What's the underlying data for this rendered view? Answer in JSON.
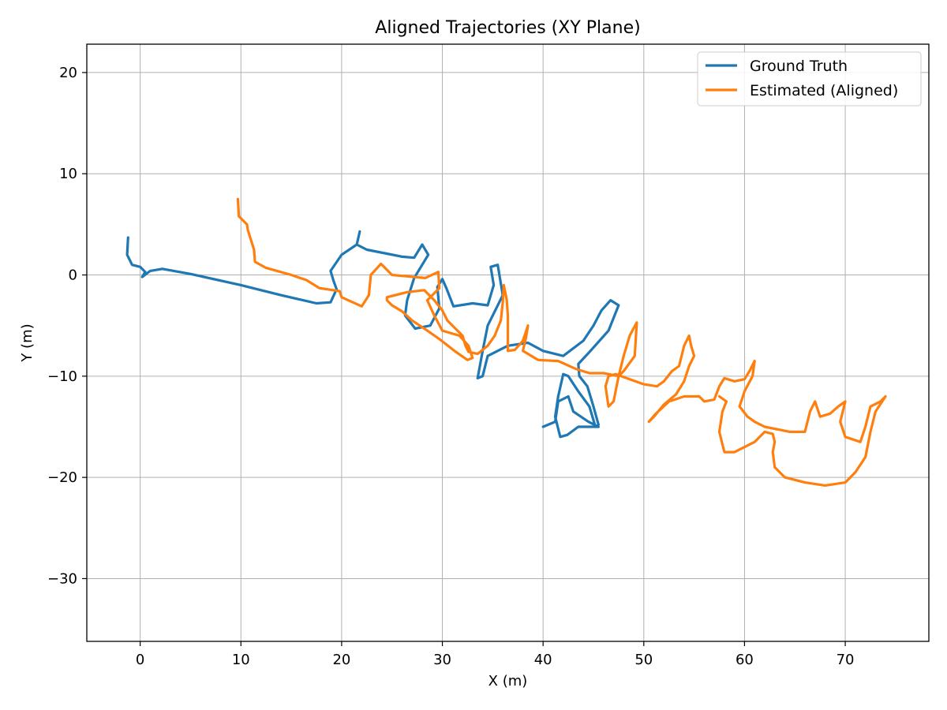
{
  "colors": {
    "ground_truth": "#1f77b4",
    "estimated": "#ff7f0e",
    "grid": "#b0b0b0",
    "axes": "#000000",
    "background": "#ffffff"
  },
  "chart_data": {
    "type": "line",
    "title": "Aligned Trajectories (XY Plane)",
    "xlabel": "X (m)",
    "ylabel": "Y (m)",
    "xlim": [
      -5.3,
      78.3
    ],
    "ylim": [
      -36.2,
      22.8
    ],
    "xticks": [
      0,
      10,
      20,
      30,
      40,
      50,
      60,
      70
    ],
    "yticks": [
      20,
      10,
      0,
      -10,
      -20,
      -30
    ],
    "xtick_labels": [
      "0",
      "10",
      "20",
      "30",
      "40",
      "50",
      "60",
      "70"
    ],
    "ytick_labels": [
      "20",
      "10",
      "0",
      "−10",
      "−20",
      "−30"
    ],
    "grid": true,
    "legend_position": "top-right",
    "series": [
      {
        "name": "Ground Truth",
        "color": "#1f77b4",
        "points": [
          [
            -1.2,
            3.7
          ],
          [
            -1.3,
            2.0
          ],
          [
            -0.8,
            1.0
          ],
          [
            0.0,
            0.8
          ],
          [
            0.5,
            0.3
          ],
          [
            0.2,
            -0.2
          ],
          [
            1.0,
            0.4
          ],
          [
            2.2,
            0.6
          ],
          [
            5.0,
            0.1
          ],
          [
            10.0,
            -1.0
          ],
          [
            14.0,
            -2.0
          ],
          [
            17.5,
            -2.8
          ],
          [
            18.9,
            -2.7
          ],
          [
            19.5,
            -1.4
          ],
          [
            19.2,
            -0.6
          ],
          [
            18.9,
            0.4
          ],
          [
            20.0,
            2.0
          ],
          [
            21.5,
            3.0
          ],
          [
            21.8,
            4.3
          ],
          [
            21.5,
            3.0
          ],
          [
            22.5,
            2.5
          ],
          [
            26.0,
            1.8
          ],
          [
            27.2,
            1.7
          ],
          [
            28.0,
            3.0
          ],
          [
            28.6,
            2.0
          ],
          [
            27.2,
            -0.3
          ],
          [
            26.5,
            -2.5
          ],
          [
            26.3,
            -4.0
          ],
          [
            27.3,
            -5.3
          ],
          [
            28.8,
            -5.0
          ],
          [
            29.7,
            -3.3
          ],
          [
            29.5,
            -1.2
          ],
          [
            30.0,
            -0.4
          ],
          [
            30.4,
            -1.3
          ],
          [
            31.1,
            -3.1
          ],
          [
            33.0,
            -2.8
          ],
          [
            34.5,
            -3.0
          ],
          [
            35.1,
            -1.0
          ],
          [
            34.8,
            0.8
          ],
          [
            35.5,
            1.0
          ],
          [
            36.0,
            -2.0
          ],
          [
            34.5,
            -5.0
          ],
          [
            34.0,
            -7.5
          ],
          [
            33.5,
            -10.2
          ],
          [
            34.0,
            -10.0
          ],
          [
            34.5,
            -8.0
          ],
          [
            36.5,
            -7.0
          ],
          [
            38.5,
            -6.7
          ],
          [
            40.0,
            -7.5
          ],
          [
            42.0,
            -8.0
          ],
          [
            44.0,
            -6.5
          ],
          [
            45.0,
            -5.0
          ],
          [
            45.8,
            -3.5
          ],
          [
            46.7,
            -2.5
          ],
          [
            47.5,
            -3.0
          ],
          [
            46.5,
            -5.5
          ],
          [
            44.7,
            -7.5
          ],
          [
            43.5,
            -8.8
          ],
          [
            43.6,
            -10.0
          ],
          [
            44.4,
            -11.0
          ],
          [
            45.0,
            -13.0
          ],
          [
            45.5,
            -14.8
          ],
          [
            45.2,
            -15.0
          ],
          [
            44.6,
            -13.0
          ],
          [
            43.5,
            -11.5
          ],
          [
            42.5,
            -10.0
          ],
          [
            42.0,
            -9.8
          ],
          [
            41.5,
            -12.0
          ],
          [
            41.2,
            -14.0
          ],
          [
            41.7,
            -16.0
          ],
          [
            42.4,
            -15.8
          ],
          [
            43.5,
            -15.0
          ],
          [
            45.5,
            -15.0
          ],
          [
            44.5,
            -14.5
          ],
          [
            43.0,
            -13.5
          ],
          [
            42.5,
            -12.0
          ],
          [
            41.5,
            -12.5
          ],
          [
            41.2,
            -14.5
          ],
          [
            40.0,
            -15.0
          ]
        ]
      },
      {
        "name": "Estimated (Aligned)",
        "color": "#ff7f0e",
        "points": [
          [
            9.7,
            7.5
          ],
          [
            9.8,
            5.8
          ],
          [
            10.6,
            5.0
          ],
          [
            10.7,
            4.4
          ],
          [
            11.3,
            2.5
          ],
          [
            11.4,
            1.3
          ],
          [
            12.5,
            0.7
          ],
          [
            15.0,
            0.0
          ],
          [
            16.5,
            -0.5
          ],
          [
            17.8,
            -1.3
          ],
          [
            19.8,
            -1.6
          ],
          [
            20.0,
            -2.2
          ],
          [
            22.0,
            -3.1
          ],
          [
            22.7,
            -2.0
          ],
          [
            22.9,
            0.0
          ],
          [
            23.9,
            1.1
          ],
          [
            25.0,
            0.0
          ],
          [
            28.3,
            -0.3
          ],
          [
            29.6,
            0.3
          ],
          [
            29.7,
            -1.3
          ],
          [
            28.5,
            -2.5
          ],
          [
            29.2,
            -4.0
          ],
          [
            30.0,
            -5.5
          ],
          [
            31.7,
            -6.0
          ],
          [
            32.6,
            -7.0
          ],
          [
            33.0,
            -8.2
          ],
          [
            32.5,
            -8.4
          ],
          [
            31.2,
            -7.5
          ],
          [
            29.8,
            -6.4
          ],
          [
            28.5,
            -5.5
          ],
          [
            27.0,
            -4.5
          ],
          [
            26.0,
            -3.6
          ],
          [
            25.0,
            -3.0
          ],
          [
            24.5,
            -2.5
          ],
          [
            24.5,
            -2.2
          ],
          [
            26.5,
            -1.7
          ],
          [
            28.2,
            -1.5
          ],
          [
            29.2,
            -2.5
          ],
          [
            30.0,
            -3.5
          ],
          [
            30.5,
            -4.5
          ],
          [
            32.0,
            -6.0
          ],
          [
            32.3,
            -7.0
          ],
          [
            32.6,
            -7.6
          ],
          [
            33.5,
            -7.8
          ],
          [
            34.5,
            -7.0
          ],
          [
            35.2,
            -6.0
          ],
          [
            35.8,
            -4.5
          ],
          [
            36.0,
            -2.7
          ],
          [
            36.1,
            -1.0
          ],
          [
            36.4,
            -2.5
          ],
          [
            36.5,
            -4.0
          ],
          [
            36.5,
            -6.8
          ],
          [
            36.5,
            -7.5
          ],
          [
            37.2,
            -7.4
          ],
          [
            38.0,
            -6.5
          ],
          [
            38.5,
            -5.0
          ],
          [
            38.3,
            -6.2
          ],
          [
            38.0,
            -7.5
          ],
          [
            39.5,
            -8.4
          ],
          [
            41.5,
            -8.5
          ],
          [
            43.3,
            -9.3
          ],
          [
            44.6,
            -9.7
          ],
          [
            46.0,
            -9.7
          ],
          [
            47.5,
            -10.0
          ],
          [
            48.0,
            -8.0
          ],
          [
            48.6,
            -6.0
          ],
          [
            49.3,
            -4.7
          ],
          [
            49.1,
            -8.0
          ],
          [
            48.0,
            -9.5
          ],
          [
            47.5,
            -10.0
          ],
          [
            47.0,
            -12.5
          ],
          [
            46.5,
            -13.0
          ],
          [
            46.2,
            -11.0
          ],
          [
            46.5,
            -10.0
          ],
          [
            47.2,
            -9.8
          ],
          [
            48.3,
            -10.2
          ],
          [
            50.0,
            -10.8
          ],
          [
            51.3,
            -11.0
          ],
          [
            52.0,
            -10.5
          ],
          [
            52.8,
            -9.5
          ],
          [
            53.5,
            -9.0
          ],
          [
            54.0,
            -7.0
          ],
          [
            54.5,
            -6.0
          ],
          [
            54.7,
            -7.0
          ],
          [
            55.0,
            -8.0
          ],
          [
            54.5,
            -9.0
          ],
          [
            54.0,
            -10.5
          ],
          [
            53.2,
            -11.8
          ],
          [
            52.0,
            -12.8
          ],
          [
            51.0,
            -14.0
          ],
          [
            50.5,
            -14.5
          ],
          [
            51.2,
            -13.7
          ],
          [
            52.5,
            -12.5
          ],
          [
            54.0,
            -12.0
          ],
          [
            55.5,
            -12.0
          ],
          [
            56.0,
            -12.5
          ],
          [
            57.0,
            -12.3
          ],
          [
            57.5,
            -11.0
          ],
          [
            58.0,
            -10.2
          ],
          [
            59.0,
            -10.5
          ],
          [
            60.0,
            -10.3
          ],
          [
            60.5,
            -9.5
          ],
          [
            61.0,
            -8.5
          ],
          [
            60.8,
            -10.0
          ],
          [
            60.0,
            -11.5
          ],
          [
            59.5,
            -13.0
          ],
          [
            60.3,
            -14.0
          ],
          [
            61.0,
            -14.5
          ],
          [
            62.0,
            -15.0
          ],
          [
            63.5,
            -15.3
          ],
          [
            64.5,
            -15.5
          ],
          [
            66.0,
            -15.5
          ],
          [
            66.5,
            -13.5
          ],
          [
            67.0,
            -12.5
          ],
          [
            67.5,
            -14.0
          ],
          [
            68.5,
            -13.7
          ],
          [
            69.3,
            -13.0
          ],
          [
            70.0,
            -12.5
          ],
          [
            69.5,
            -14.5
          ],
          [
            70.0,
            -16.0
          ],
          [
            71.5,
            -16.5
          ],
          [
            72.0,
            -15.0
          ],
          [
            72.5,
            -13.0
          ],
          [
            73.5,
            -12.5
          ],
          [
            74.0,
            -12.0
          ],
          [
            73.0,
            -13.5
          ],
          [
            72.5,
            -15.5
          ],
          [
            72.0,
            -18.0
          ],
          [
            71.0,
            -19.5
          ],
          [
            70.0,
            -20.5
          ],
          [
            68.0,
            -20.8
          ],
          [
            66.0,
            -20.5
          ],
          [
            64.0,
            -20.0
          ],
          [
            63.0,
            -19.0
          ],
          [
            62.8,
            -17.5
          ],
          [
            63.0,
            -16.5
          ],
          [
            62.8,
            -15.7
          ],
          [
            62.0,
            -15.5
          ],
          [
            61.0,
            -16.5
          ],
          [
            60.0,
            -17.0
          ],
          [
            59.0,
            -17.5
          ],
          [
            58.0,
            -17.5
          ],
          [
            57.5,
            -15.5
          ],
          [
            57.8,
            -13.5
          ],
          [
            58.2,
            -12.5
          ],
          [
            57.5,
            -12.0
          ]
        ]
      }
    ]
  }
}
